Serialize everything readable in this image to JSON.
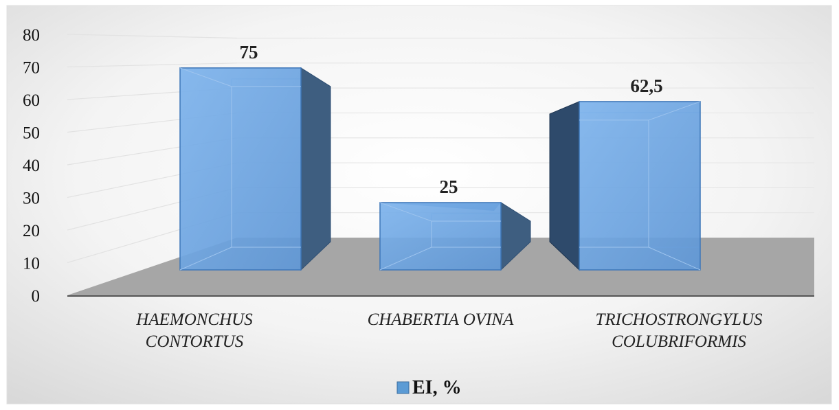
{
  "chart_data": {
    "type": "bar",
    "categories": [
      "HAEMONCHUS CONTORTUS",
      "CHABERTIA OVINA",
      "TRICHOSTRONGYLUS COLUBRIFORMIS"
    ],
    "category_lines": [
      [
        "HAEMONCHUS",
        "CONTORTUS"
      ],
      [
        "CHABERTIA OVINA"
      ],
      [
        "TRICHOSTRONGYLUS",
        "COLUBRIFORMIS"
      ]
    ],
    "series": [
      {
        "name": "EI, %",
        "values": [
          75,
          25,
          62.5
        ],
        "data_labels": [
          "75",
          "25",
          "62,5"
        ]
      }
    ],
    "yticks": [
      "0",
      "10",
      "20",
      "30",
      "40",
      "50",
      "60",
      "70",
      "80"
    ],
    "ylim": [
      0,
      80
    ],
    "grid": true,
    "legend_position": "bottom",
    "style": "3d",
    "colors": {
      "bar_front": "#6FA7E2",
      "bar_side": "#3E5E80",
      "bar_top": "#5A8FC8",
      "floor": "#A6A6A6",
      "legend": "#5B9BD5"
    }
  }
}
